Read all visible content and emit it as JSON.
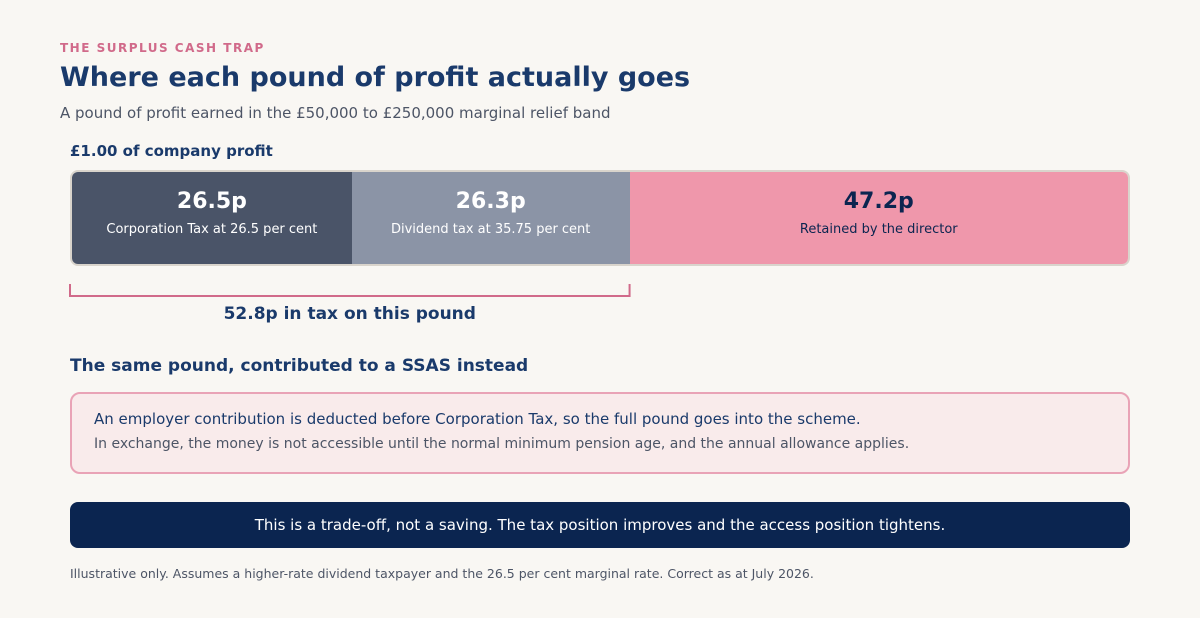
{
  "header": {
    "eyebrow": "THE SURPLUS CASH TRAP",
    "title": "Where each pound of profit actually goes",
    "subtitle": "A pound of profit earned in the £50,000 to £250,000 marginal relief band"
  },
  "chart_data": {
    "type": "bar",
    "orientation": "horizontal-stacked",
    "title": "£1.00 of company profit",
    "total": 100,
    "segments": [
      {
        "value": 26.5,
        "value_label": "26.5p",
        "label": "Corporation Tax at 26.5 per cent",
        "color": "#4a5468",
        "text_color": "#ffffff"
      },
      {
        "value": 26.3,
        "value_label": "26.3p",
        "label": "Dividend tax at 35.75 per cent",
        "color": "#8b94a6",
        "text_color": "#ffffff"
      },
      {
        "value": 47.2,
        "value_label": "47.2p",
        "label": "Retained by the director",
        "color": "#ef97ab",
        "text_color": "#0b2550"
      }
    ],
    "annotation": {
      "spans_segments": [
        0,
        1
      ],
      "label": "52.8p in tax on this pound",
      "color": "#d16a8a"
    }
  },
  "ssas": {
    "heading": "The same pound, contributed to a SSAS instead",
    "line1": "An employer contribution is deducted before Corporation Tax, so the full pound goes into the scheme.",
    "line2": "In exchange, the money is not accessible until the normal minimum pension age, and the annual allowance applies."
  },
  "banner": {
    "text": "This is a trade-off, not a saving. The tax position improves and the access position tightens."
  },
  "footnote": "Illustrative only. Assumes a higher-rate dividend taxpayer and the 26.5 per cent marginal rate. Correct as at July 2026."
}
